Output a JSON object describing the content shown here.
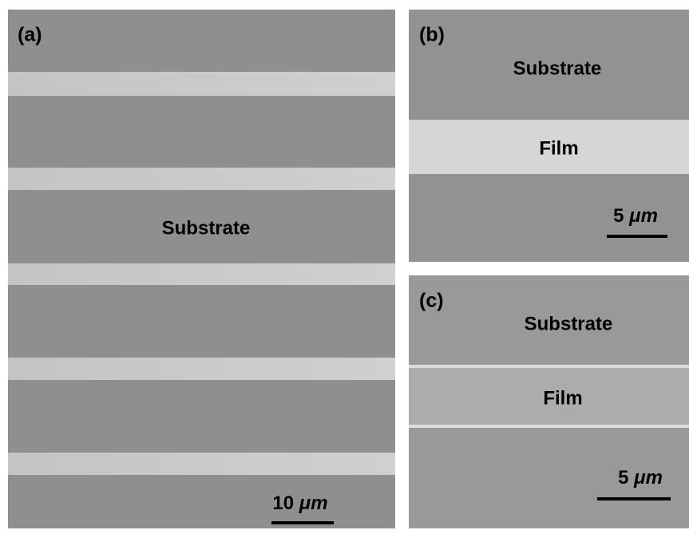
{
  "panels": [
    {
      "label": "(a)",
      "texts": [
        "Substrate"
      ],
      "scale_bar": {
        "number": "10",
        "unit": "μm"
      }
    },
    {
      "label": "(b)",
      "texts": [
        "Substrate",
        "Film"
      ],
      "scale_bar": {
        "number": "5",
        "unit": "μm"
      }
    },
    {
      "label": "(c)",
      "texts": [
        "Substrate",
        "Film"
      ],
      "scale_bar": {
        "number": "5",
        "unit": "μm"
      }
    }
  ]
}
